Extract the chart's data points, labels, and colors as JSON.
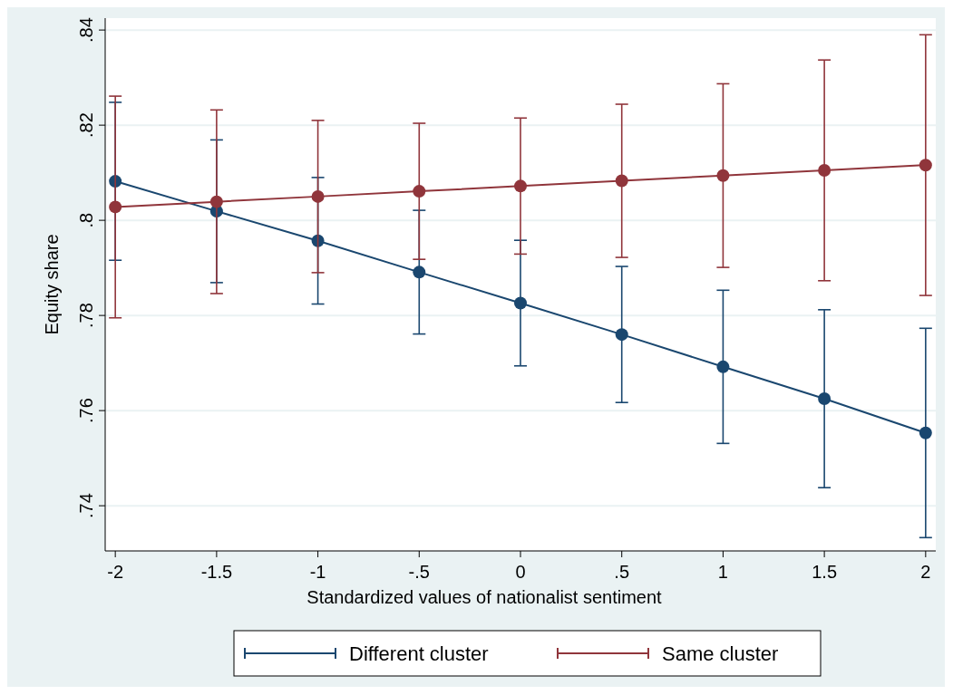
{
  "chart_data": {
    "type": "line",
    "xlabel": "Standardized values of nationalist sentiment",
    "ylabel": "Equity share",
    "x": [
      -2,
      -1.5,
      -1,
      -0.5,
      0,
      0.5,
      1,
      1.5,
      2
    ],
    "series": [
      {
        "name": "Different cluster",
        "color": "#1a476f",
        "values": [
          0.8082,
          0.8019,
          0.7957,
          0.7891,
          0.7826,
          0.776,
          0.7692,
          0.7625,
          0.7553
        ],
        "errors": [
          0.0166,
          0.015,
          0.0133,
          0.013,
          0.0132,
          0.0143,
          0.0161,
          0.0187,
          0.022
        ]
      },
      {
        "name": "Same cluster",
        "color": "#90353b",
        "values": [
          0.8028,
          0.8039,
          0.805,
          0.8061,
          0.8072,
          0.8083,
          0.8094,
          0.8105,
          0.8116
        ],
        "errors": [
          0.0233,
          0.0193,
          0.016,
          0.0143,
          0.0143,
          0.0161,
          0.0193,
          0.0232,
          0.0274
        ]
      }
    ],
    "xlim": [
      -2.05,
      2.05
    ],
    "xticks": [
      {
        "value": -2,
        "label": "-2"
      },
      {
        "value": -1.5,
        "label": "-1.5"
      },
      {
        "value": -1,
        "label": "-1"
      },
      {
        "value": -0.5,
        "label": "-.5"
      },
      0,
      {
        "value": 0.5,
        "label": ".5"
      },
      1,
      1.5,
      2
    ],
    "ylim": [
      0.7305,
      0.8425
    ],
    "yticks": [
      {
        "value": 0.74,
        "label": ".74"
      },
      {
        "value": 0.76,
        "label": ".76"
      },
      {
        "value": 0.78,
        "label": ".78"
      },
      {
        "value": 0.8,
        "label": ".8"
      },
      {
        "value": 0.82,
        "label": ".82"
      },
      {
        "value": 0.84,
        "label": ".84"
      }
    ],
    "grid": "y",
    "legend": "bottom",
    "marker": "circle",
    "line_style": "solid"
  }
}
